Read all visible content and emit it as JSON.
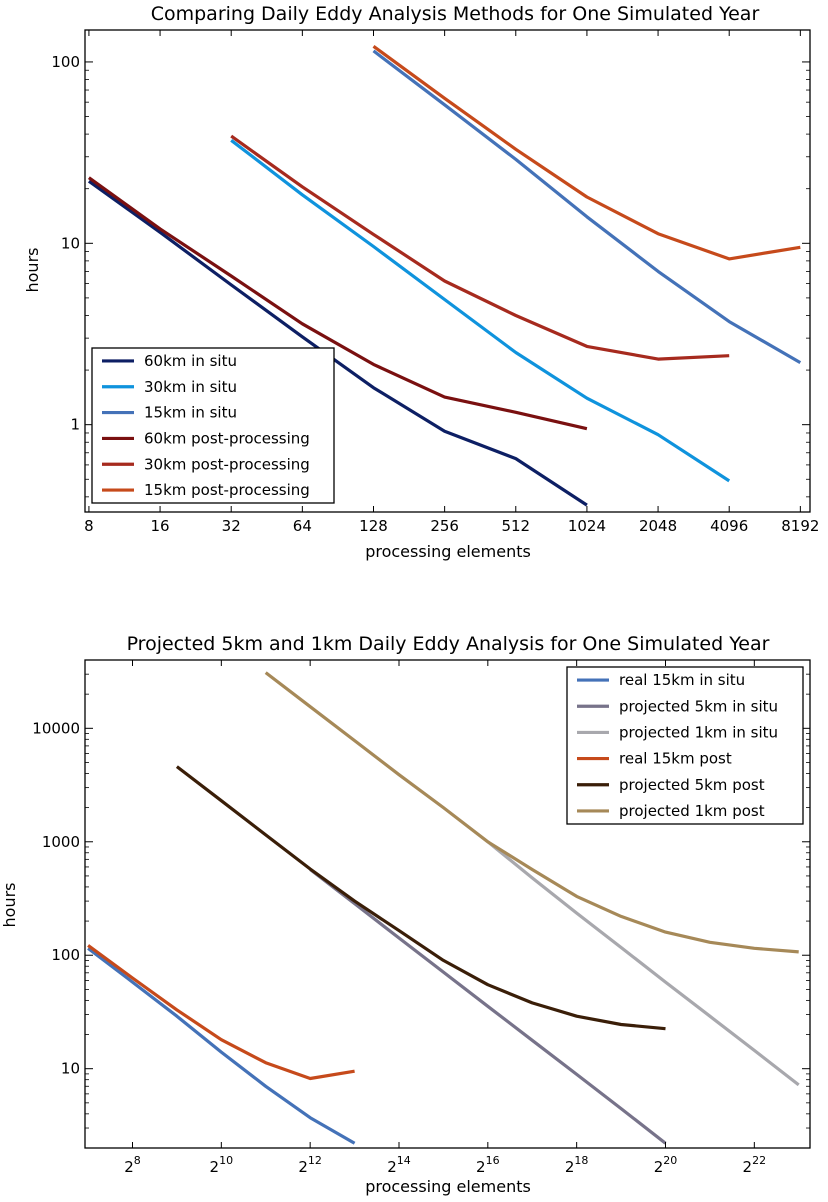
{
  "chart_data": [
    {
      "type": "line",
      "title": "Comparing Daily Eddy Analysis Methods for One Simulated Year",
      "xlabel": "processing elements",
      "ylabel": "hours",
      "xscale": "log2",
      "yscale": "log10",
      "xlim": [
        7.7,
        9000
      ],
      "ylim": [
        0.33,
        150
      ],
      "xticks": [
        8,
        16,
        32,
        64,
        128,
        256,
        512,
        1024,
        2048,
        4096,
        8192
      ],
      "xtick_labels": [
        "8",
        "16",
        "32",
        "64",
        "128",
        "256",
        "512",
        "1024",
        "2048",
        "4096",
        "8192"
      ],
      "yticks": [
        1,
        10,
        100
      ],
      "ytick_labels": [
        "1",
        "10",
        "100"
      ],
      "legend_position": "bottom-left",
      "series": [
        {
          "name": "60km in situ",
          "color": "#0d1f64",
          "x": [
            8,
            16,
            32,
            64,
            128,
            256,
            512,
            1024
          ],
          "y": [
            22,
            11.5,
            5.9,
            3.05,
            1.6,
            0.92,
            0.65,
            0.36
          ]
        },
        {
          "name": "30km in situ",
          "color": "#0f93dd",
          "x": [
            32,
            64,
            128,
            256,
            512,
            1024,
            2048,
            4096
          ],
          "y": [
            37,
            18.5,
            9.6,
            4.9,
            2.5,
            1.4,
            0.88,
            0.49
          ]
        },
        {
          "name": "15km in situ",
          "color": "#4472b8",
          "x": [
            128,
            256,
            512,
            1024,
            2048,
            4096,
            8192
          ],
          "y": [
            115,
            58,
            29,
            14,
            7,
            3.7,
            2.2
          ]
        },
        {
          "name": "60km post-processing",
          "color": "#7a1010",
          "x": [
            8,
            16,
            32,
            64,
            128,
            256,
            512,
            1024
          ],
          "y": [
            23,
            12,
            6.6,
            3.6,
            2.15,
            1.42,
            1.17,
            0.95
          ]
        },
        {
          "name": "30km post-processing",
          "color": "#a62a1e",
          "x": [
            32,
            64,
            128,
            256,
            512,
            1024,
            2048,
            4096
          ],
          "y": [
            39,
            20.5,
            11.2,
            6.2,
            4.0,
            2.7,
            2.3,
            2.4
          ]
        },
        {
          "name": "15km post-processing",
          "color": "#c64a1b",
          "x": [
            128,
            256,
            512,
            1024,
            2048,
            4096,
            8192
          ],
          "y": [
            122,
            63,
            33,
            18,
            11.3,
            8.2,
            9.5
          ]
        }
      ]
    },
    {
      "type": "line",
      "title": "Projected 5km and 1km Daily Eddy Analysis for One Simulated Year",
      "xlabel": "processing elements",
      "ylabel": "hours",
      "xscale": "log2",
      "yscale": "log10",
      "xlim": [
        122,
        10000000
      ],
      "ylim": [
        2.0,
        40000
      ],
      "xticks": [
        256,
        1024,
        4096,
        16384,
        65536,
        262144,
        1048576,
        4194304
      ],
      "xtick_labels": [
        {
          "base": "2",
          "exp": "8"
        },
        {
          "base": "2",
          "exp": "10"
        },
        {
          "base": "2",
          "exp": "12"
        },
        {
          "base": "2",
          "exp": "14"
        },
        {
          "base": "2",
          "exp": "16"
        },
        {
          "base": "2",
          "exp": "18"
        },
        {
          "base": "2",
          "exp": "20"
        },
        {
          "base": "2",
          "exp": "22"
        }
      ],
      "yticks": [
        10,
        100,
        1000,
        10000
      ],
      "ytick_labels": [
        "10",
        "100",
        "1000",
        "10000"
      ],
      "legend_position": "top-right",
      "series": [
        {
          "name": "real 15km in situ",
          "color": "#4472b8",
          "x": [
            128,
            256,
            512,
            1024,
            2048,
            4096,
            8192
          ],
          "y": [
            115,
            58,
            29,
            14,
            7,
            3.7,
            2.2
          ]
        },
        {
          "name": "projected 5km in situ",
          "color": "#77738a",
          "x": [
            4096,
            8192,
            16384,
            32768,
            65536,
            131072,
            262144,
            524288,
            1048576
          ],
          "y": [
            570,
            285,
            142,
            71,
            35.5,
            17.8,
            8.9,
            4.45,
            2.2
          ]
        },
        {
          "name": "projected 1km in situ",
          "color": "#a8a8ad",
          "x": [
            65536,
            131072,
            262144,
            524288,
            1048576,
            2097152,
            4194304,
            8388608
          ],
          "y": [
            1000,
            480,
            235,
            117,
            58,
            29,
            14.5,
            7.2
          ]
        },
        {
          "name": "real 15km post",
          "color": "#c64a1b",
          "x": [
            128,
            256,
            512,
            1024,
            2048,
            4096,
            8192
          ],
          "y": [
            122,
            63,
            33,
            18,
            11.3,
            8.2,
            9.5
          ]
        },
        {
          "name": "projected 5km post",
          "color": "#3a1e08",
          "x": [
            512,
            1024,
            2048,
            4096,
            8192,
            16384,
            32768,
            65536,
            131072,
            262144,
            524288,
            1048576
          ],
          "y": [
            4600,
            2300,
            1150,
            575,
            300,
            165,
            90,
            55,
            38,
            29,
            24.5,
            22.5
          ]
        },
        {
          "name": "projected 1km post",
          "color": "#a68958",
          "x": [
            2048,
            4096,
            8192,
            16384,
            32768,
            65536,
            131072,
            262144,
            524288,
            1048576,
            2097152,
            4194304,
            8388608
          ],
          "y": [
            31000,
            15500,
            7800,
            3900,
            2000,
            1000,
            570,
            330,
            220,
            160,
            130,
            115,
            107
          ]
        }
      ]
    }
  ]
}
